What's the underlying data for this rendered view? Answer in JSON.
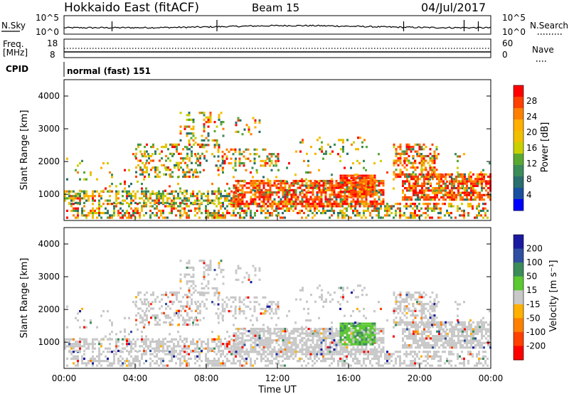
{
  "header": {
    "title": "Hokkaido East (fitACF)",
    "beam": "Beam 15",
    "date": "04/Jul/2017"
  },
  "strip_labels": {
    "nsky": "N.Sky",
    "nsky_top": "10^5",
    "nsky_bottom": "10^0",
    "nsearch": "N.Search",
    "nsearch_top": "10^5",
    "nsearch_bottom": "10^0",
    "freq_line1": "Freq.",
    "freq_line2": "[MHz]",
    "freq_top": "18",
    "freq_bottom": "8",
    "nave": "Nave",
    "nave_top": "60",
    "nave_bottom": "0",
    "cpid": "CPID",
    "cpid_value": "normal (fast) 151"
  },
  "power_scale": {
    "label": "Power [dB]",
    "ticks": [
      "28",
      "24",
      "20",
      "16",
      "12",
      "8",
      "4"
    ],
    "colors": [
      "#ff0000",
      "#ff4000",
      "#ff8000",
      "#ffb000",
      "#f0c000",
      "#c8d000",
      "#5aa832",
      "#3c8c5a",
      "#2a6e6e",
      "#1a4fa0",
      "#0000ff"
    ]
  },
  "velocity_scale": {
    "label": "Velocity [m s⁻¹]",
    "ticks": [
      "200",
      "100",
      "50",
      "15",
      "-15",
      "-50",
      "-100",
      "-200"
    ],
    "colors": [
      "#1a1aa0",
      "#2f4fa0",
      "#3c8c5a",
      "#5cc832",
      "#c8c8c8",
      "#ffb000",
      "#ff8000",
      "#ff4000",
      "#ff0000"
    ]
  },
  "chart_data": [
    {
      "type": "heatmap",
      "name": "power",
      "ylabel": "Slant Range [km]",
      "yticks": [
        "4000",
        "3000",
        "2000",
        "1000"
      ],
      "ylim": [
        200,
        4500
      ],
      "xlim": [
        "00:00",
        "24:00"
      ],
      "features_hint": "power echoes between ~300 and 3600 km; strongest (red) 10:00-18:00 near 800-1200 km and 21:00-24:00 near 1000 km"
    },
    {
      "type": "heatmap",
      "name": "velocity",
      "ylabel": "Slant Range [km]",
      "yticks": [
        "4000",
        "3000",
        "2000",
        "1000"
      ],
      "ylim": [
        200,
        4500
      ],
      "xlim": [
        "00:00",
        "24:00"
      ],
      "xlabel": "Time UT",
      "xticks": [
        "00:00",
        "04:00",
        "08:00",
        "12:00",
        "16:00",
        "20:00",
        "00:00"
      ]
    }
  ]
}
